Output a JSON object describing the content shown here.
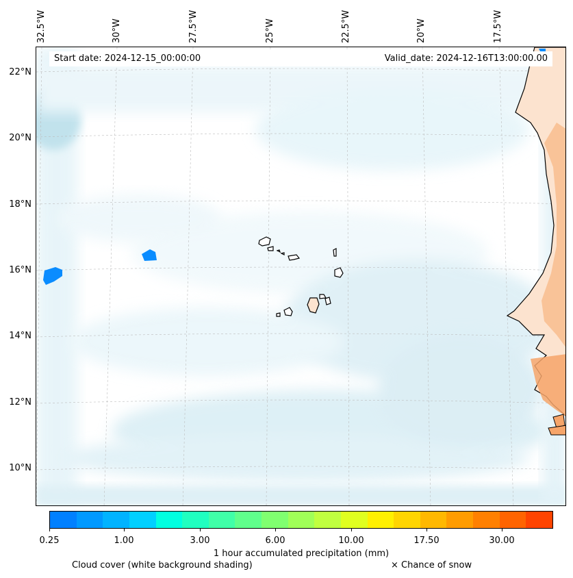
{
  "header": {
    "start_date": "Start date: 2024-12-15_00:00:00",
    "valid_date": "Valid_date: 2024-12-16T13:00:00.00"
  },
  "axes": {
    "lon_labels": [
      "32.5°W",
      "30°W",
      "27.5°W",
      "25°W",
      "22.5°W",
      "20°W",
      "17.5°W"
    ],
    "lat_labels": [
      "22°N",
      "20°N",
      "18°N",
      "16°N",
      "14°N",
      "12°N",
      "10°N"
    ]
  },
  "colorbar": {
    "colors": [
      "#0080ff",
      "#0099ff",
      "#00b3ff",
      "#00d0ff",
      "#00ffe0",
      "#20ffc0",
      "#40ffa8",
      "#60ff8c",
      "#80ff70",
      "#a0ff58",
      "#c0ff40",
      "#e0ff20",
      "#fff000",
      "#ffd500",
      "#ffb800",
      "#ff9c00",
      "#ff8000",
      "#ff6400",
      "#ff4400"
    ],
    "ticks": [
      "0.25",
      "1.00",
      "3.00",
      "6.00",
      "10.00",
      "17.50",
      "30.00"
    ],
    "label": "1 hour accumulated precipitation (mm)"
  },
  "legend": {
    "cloud_note": "Cloud cover (white background shading)",
    "snow_note": "× Chance of snow"
  },
  "style": {
    "cloud_color": "#a8d8e8",
    "land_color": "#fbd6b8",
    "land_warm_color": "#f6a56a",
    "precip_color": "#0a8cff"
  }
}
